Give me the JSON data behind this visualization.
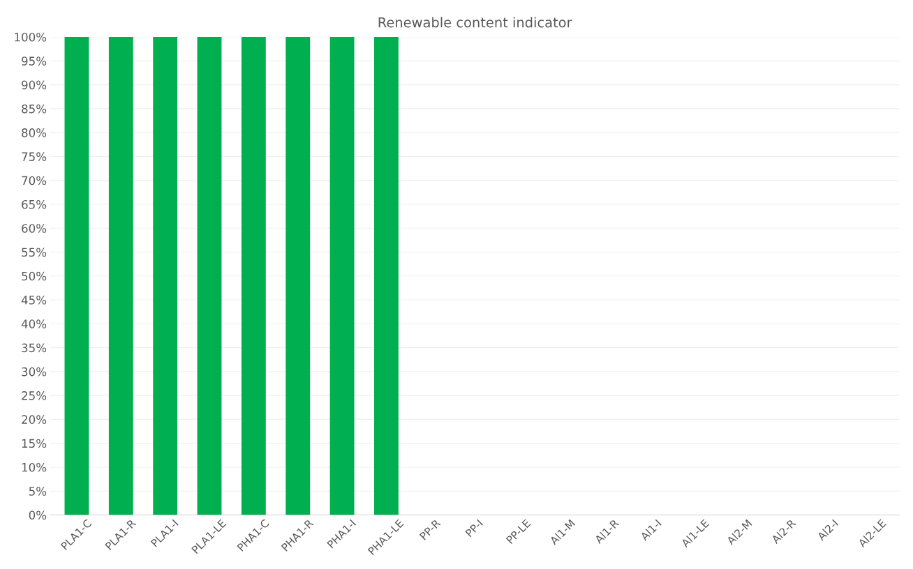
{
  "chart_data": {
    "type": "bar",
    "title": "Renewable content indicator",
    "categories": [
      "PLA1-C",
      "PLA1-R",
      "PLA1-I",
      "PLA1-LE",
      "PHA1-C",
      "PHA1-R",
      "PHA1-I",
      "PHA1-LE",
      "PP-R",
      "PP-I",
      "PP-LE",
      "Al1-M",
      "Al1-R",
      "Al1-I",
      "Al1-LE",
      "Al2-M",
      "Al2-R",
      "Al2-I",
      "Al2-LE"
    ],
    "values": [
      100,
      100,
      100,
      100,
      100,
      100,
      100,
      100,
      0,
      0,
      0,
      0,
      0,
      0,
      0,
      0,
      0,
      0,
      0
    ],
    "color": "#00b050",
    "ylim": [
      0,
      100
    ],
    "yticks": [
      {
        "value": 0,
        "label": "0%"
      },
      {
        "value": 5,
        "label": "5%"
      },
      {
        "value": 10,
        "label": "10%"
      },
      {
        "value": 15,
        "label": "15%"
      },
      {
        "value": 20,
        "label": "20%"
      },
      {
        "value": 25,
        "label": "25%"
      },
      {
        "value": 30,
        "label": "30%"
      },
      {
        "value": 35,
        "label": "35%"
      },
      {
        "value": 40,
        "label": "40%"
      },
      {
        "value": 45,
        "label": "45%"
      },
      {
        "value": 50,
        "label": "50%"
      },
      {
        "value": 55,
        "label": "55%"
      },
      {
        "value": 60,
        "label": "60%"
      },
      {
        "value": 65,
        "label": "65%"
      },
      {
        "value": 70,
        "label": "70%"
      },
      {
        "value": 75,
        "label": "75%"
      },
      {
        "value": 80,
        "label": "80%"
      },
      {
        "value": 85,
        "label": "85%"
      },
      {
        "value": 90,
        "label": "90%"
      },
      {
        "value": 95,
        "label": "95%"
      },
      {
        "value": 100,
        "label": "100%"
      }
    ],
    "grid": "y"
  }
}
